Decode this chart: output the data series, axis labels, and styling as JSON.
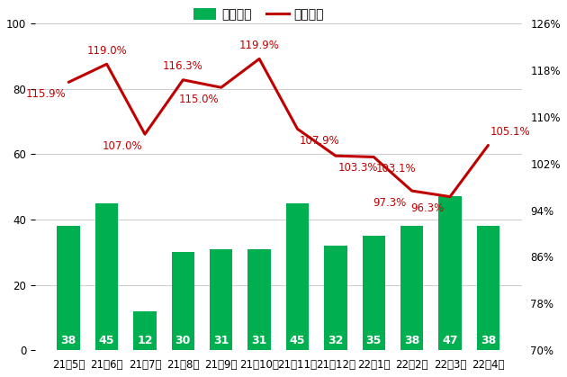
{
  "categories": [
    "21년5월",
    "21년6월",
    "21년7월",
    "21년8월",
    "21년9월",
    "21년10월",
    "21년11월",
    "21년12월",
    "22년1월",
    "22년2월",
    "22년3월",
    "22년4월"
  ],
  "bar_values": [
    38,
    45,
    12,
    30,
    31,
    31,
    45,
    32,
    35,
    38,
    47,
    38
  ],
  "line_values": [
    115.9,
    119.0,
    107.0,
    116.3,
    115.0,
    119.9,
    107.9,
    103.3,
    103.1,
    97.3,
    96.3,
    105.1
  ],
  "bar_color": "#00b050",
  "line_color": "#c00000",
  "bar_label_color": "#ffffff",
  "left_ylim": [
    0,
    100
  ],
  "right_ylim": [
    70,
    126
  ],
  "left_yticks": [
    0,
    20,
    40,
    60,
    80,
    100
  ],
  "right_yticks": [
    70,
    78,
    86,
    94,
    102,
    110,
    118,
    126
  ],
  "right_ytick_labels": [
    "70%",
    "78%",
    "86%",
    "94%",
    "102%",
    "110%",
    "118%",
    "126%"
  ],
  "legend_bar_label": "진행건수",
  "legend_line_label": "낙찰가율",
  "background_color": "#ffffff",
  "grid_color": "#cccccc",
  "bar_fontsize": 9,
  "label_fontsize": 8.5,
  "tick_fontsize": 8.5,
  "line_annot_offsets": [
    [
      -18,
      -14
    ],
    [
      0,
      6
    ],
    [
      -18,
      -14
    ],
    [
      0,
      6
    ],
    [
      -18,
      -14
    ],
    [
      0,
      6
    ],
    [
      18,
      -14
    ],
    [
      18,
      -14
    ],
    [
      18,
      -14
    ],
    [
      -18,
      -14
    ],
    [
      -18,
      -14
    ],
    [
      18,
      6
    ]
  ]
}
